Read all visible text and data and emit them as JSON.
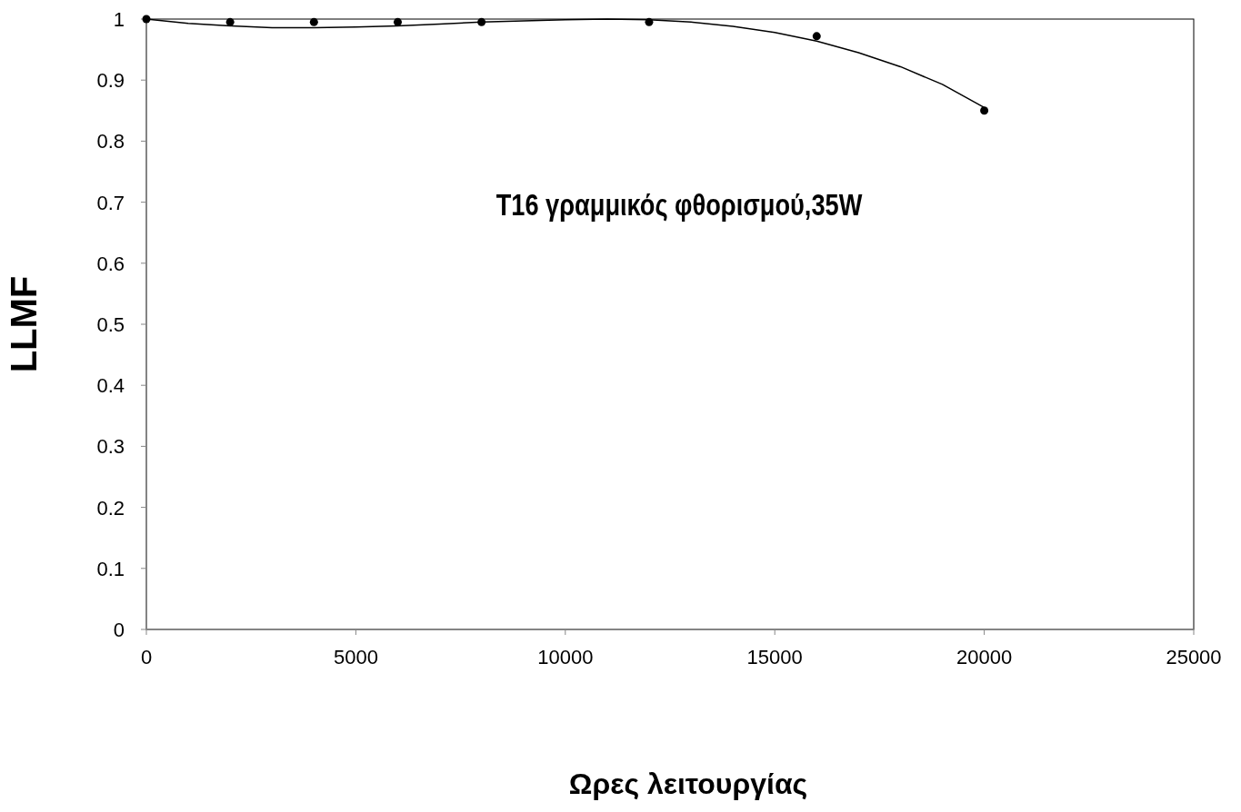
{
  "chart_data": {
    "type": "scatter",
    "title": "T16 γραμμικός φθορισμού,35W",
    "xlabel": "Ωρες λειτουργίας",
    "ylabel": "LLMF",
    "xlim": [
      0,
      25000
    ],
    "xticks": [
      0,
      5000,
      10000,
      15000,
      20000,
      25000
    ],
    "ylim": [
      0,
      1
    ],
    "yticks": [
      0,
      0.1,
      0.2,
      0.3,
      0.4,
      0.5,
      0.6,
      0.7,
      0.8,
      0.9,
      1
    ],
    "grid": false,
    "marker": "circle",
    "series": [
      {
        "color": "#000000",
        "x": [
          0,
          2000,
          4000,
          6000,
          8000,
          12000,
          16000,
          20000
        ],
        "values": [
          1,
          0.995,
          0.995,
          0.995,
          0.995,
          0.995,
          0.972,
          0.85
        ]
      },
      {
        "type": "line",
        "color": "#000000",
        "marker": "none",
        "line_style": "solid",
        "x": [
          0,
          1000,
          2000,
          3000,
          4000,
          5000,
          6000,
          7000,
          8000,
          9000,
          10000,
          11000,
          12000,
          13000,
          14000,
          15000,
          16000,
          17000,
          18000,
          19000,
          20000
        ],
        "values": [
          1,
          0.993,
          0.989,
          0.986,
          0.986,
          0.987,
          0.989,
          0.992,
          0.995,
          0.997,
          0.999,
          1,
          0.999,
          0.995,
          0.988,
          0.978,
          0.964,
          0.945,
          0.922,
          0.893,
          0.855
        ]
      }
    ]
  }
}
